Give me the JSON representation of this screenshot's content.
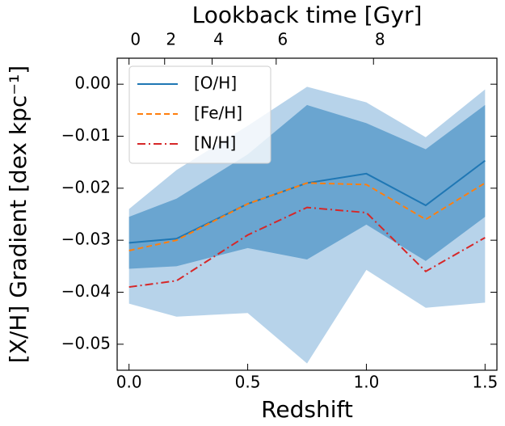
{
  "chart_data": {
    "type": "line",
    "xlabel": "Redshift",
    "ylabel": "[X/H] Gradient [dex kpc⁻¹]",
    "x2label": "Lookback time [Gyr]",
    "x": [
      0,
      0.2,
      0.5,
      0.75,
      1.0,
      1.25,
      1.5
    ],
    "series": [
      {
        "name": "[O/H]",
        "color": "#1f77b4",
        "dash": "solid",
        "values": [
          -0.0305,
          -0.0297,
          -0.023,
          -0.019,
          -0.0172,
          -0.0233,
          -0.0147
        ]
      },
      {
        "name": "[Fe/H]",
        "color": "#ff7f0e",
        "dash": "dashed",
        "values": [
          -0.032,
          -0.03,
          -0.023,
          -0.019,
          -0.0193,
          -0.026,
          -0.019
        ]
      },
      {
        "name": "[N/H]",
        "color": "#d62728",
        "dash": "dashdot",
        "values": [
          -0.039,
          -0.0378,
          -0.029,
          -0.0237,
          -0.0247,
          -0.036,
          -0.0295
        ]
      }
    ],
    "bands": [
      {
        "color": "#b7d3ea",
        "upper": [
          -0.024,
          -0.0165,
          -0.008,
          -0.0005,
          -0.0035,
          -0.0102,
          -0.001
        ],
        "lower": [
          -0.0422,
          -0.0447,
          -0.044,
          -0.0537,
          -0.0357,
          -0.043,
          -0.042
        ]
      },
      {
        "color": "#6aa5d0",
        "upper": [
          -0.0255,
          -0.022,
          -0.0135,
          -0.004,
          -0.0075,
          -0.0125,
          -0.004
        ],
        "lower": [
          -0.0355,
          -0.035,
          -0.0315,
          -0.0337,
          -0.027,
          -0.034,
          -0.0255
        ]
      }
    ],
    "xlim": [
      -0.05,
      1.55
    ],
    "ylim": [
      -0.055,
      0.005
    ],
    "xticks": [
      {
        "value": 0,
        "label": "0.0"
      },
      {
        "value": 0.5,
        "label": "0.5"
      },
      {
        "value": 1.0,
        "label": "1.0"
      },
      {
        "value": 1.5,
        "label": "1.5"
      }
    ],
    "yticks": [
      {
        "value": 0,
        "label": "0.00"
      },
      {
        "value": -0.01,
        "label": "−0.01"
      },
      {
        "value": -0.02,
        "label": "−0.02"
      },
      {
        "value": -0.03,
        "label": "−0.03"
      },
      {
        "value": -0.04,
        "label": "−0.04"
      },
      {
        "value": -0.05,
        "label": "−0.05"
      }
    ],
    "x2ticks": [
      {
        "value": 0,
        "label": "0"
      },
      {
        "value": 0.15,
        "label": "2"
      },
      {
        "value": 0.35,
        "label": "4"
      },
      {
        "value": 0.62,
        "label": "6"
      },
      {
        "value": 1.03,
        "label": "8"
      }
    ],
    "legend": "upper left"
  }
}
